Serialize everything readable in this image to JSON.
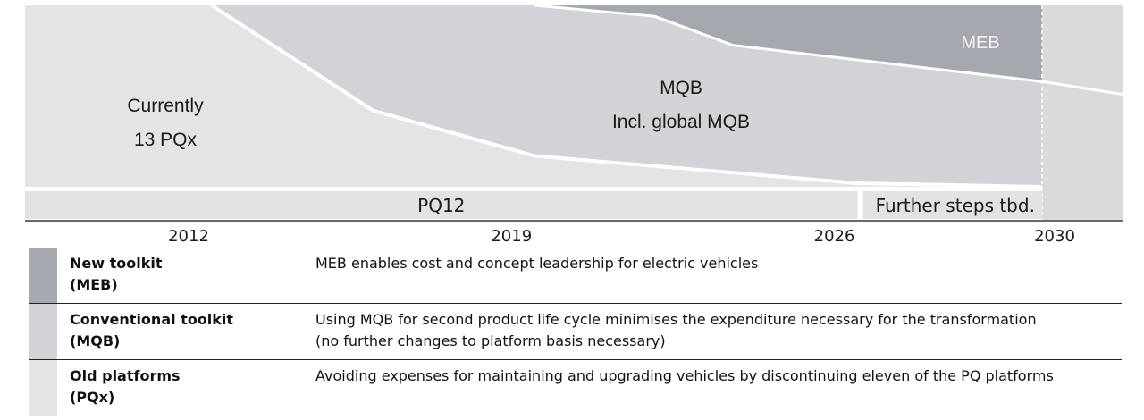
{
  "colors": {
    "pqx_area": "#e4e4e6",
    "mqb_area": "#d2d3d6",
    "meb_area": "#a5a8ae",
    "further_area": "#d9dadc",
    "bar_fill": "#e2e2e4",
    "swatch_meb": "#a5a8ae",
    "swatch_mqb": "#d2d3d6",
    "swatch_pqx": "#e4e4e6"
  },
  "chart_data": {
    "type": "area",
    "title": "",
    "x_axis": {
      "ticks": [
        2012,
        2019,
        2026,
        2030
      ],
      "range": [
        2012,
        2032
      ]
    },
    "y_axis": {
      "range": [
        0,
        100
      ],
      "label": ""
    },
    "series": [
      {
        "name": "MEB",
        "label": "MEB",
        "points": [
          [
            2019,
            100
          ],
          [
            2021.6,
            94
          ],
          [
            2023.3,
            78
          ],
          [
            2030,
            58
          ]
        ]
      },
      {
        "name": "MQB",
        "label_lines": [
          "MQB",
          "Incl. global MQB"
        ],
        "points": [
          [
            2012,
            100
          ],
          [
            2015.5,
            42
          ],
          [
            2019,
            17
          ],
          [
            2026,
            2
          ],
          [
            2030,
            0
          ]
        ]
      },
      {
        "name": "PQx",
        "label_lines": [
          "Currently",
          "13 PQx"
        ],
        "points": [
          [
            2012,
            100
          ],
          [
            2030,
            100
          ]
        ]
      }
    ],
    "bars": [
      {
        "label": "PQ12",
        "from": 2012,
        "to": 2026
      },
      {
        "label": "Further steps tbd.",
        "from": 2026,
        "to": 2030
      }
    ]
  },
  "legend": {
    "rows": [
      {
        "title_lines": [
          "New toolkit",
          "(MEB)"
        ],
        "desc_lines": [
          "MEB enables cost and concept leadership for electric vehicles"
        ]
      },
      {
        "title_lines": [
          "Conventional toolkit",
          "(MQB)"
        ],
        "desc_lines": [
          "Using MQB for second product life cycle minimises the expenditure necessary for the transformation",
          "(no further changes to platform basis necessary)"
        ]
      },
      {
        "title_lines": [
          "Old platforms",
          "(PQx)"
        ],
        "desc_lines": [
          "Avoiding expenses for maintaining and upgrading vehicles by discontinuing eleven of the PQ platforms"
        ]
      }
    ]
  }
}
